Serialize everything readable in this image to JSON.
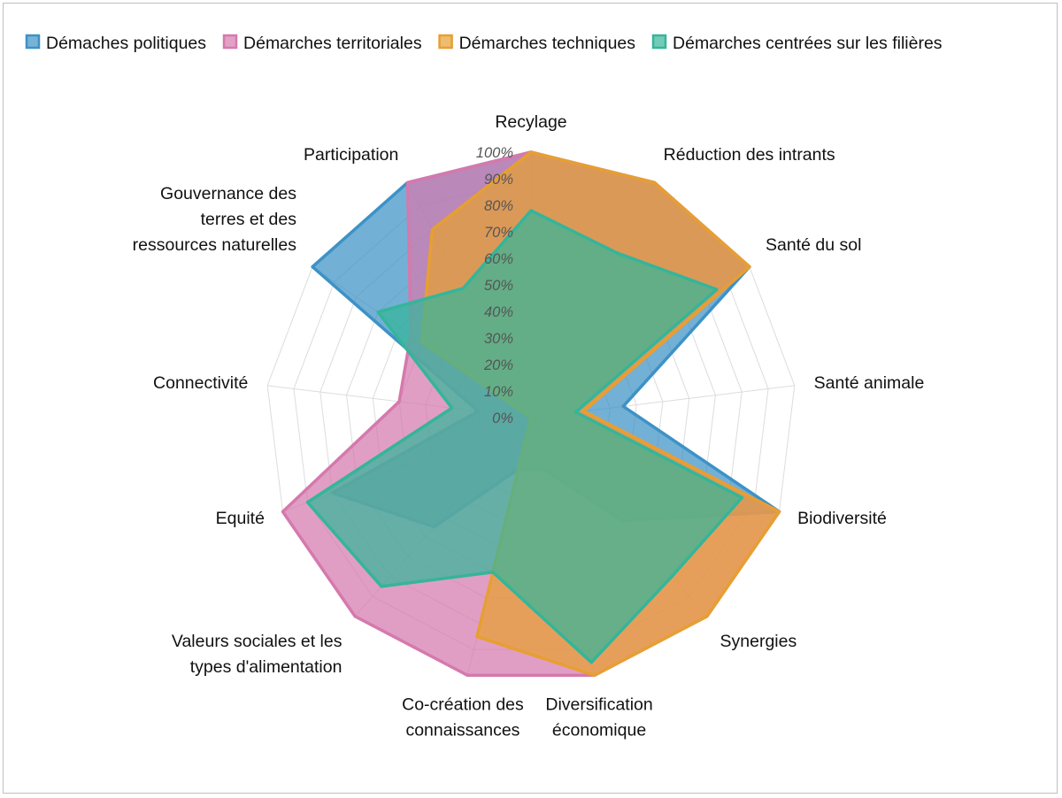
{
  "chart_data": {
    "type": "radar",
    "title": "",
    "grid": true,
    "legend_position": "top",
    "r_range": [
      0,
      100
    ],
    "ticks": [
      "0%",
      "10%",
      "20%",
      "30%",
      "40%",
      "50%",
      "60%",
      "70%",
      "80%",
      "90%",
      "100%"
    ],
    "categories": [
      [
        "Recylage"
      ],
      [
        "Réduction des intrants"
      ],
      [
        "Santé du sol"
      ],
      [
        "Santé animale"
      ],
      [
        "Biodiversité"
      ],
      [
        "Synergies"
      ],
      [
        "Diversification",
        "économique"
      ],
      [
        "Co-création des",
        "connaissances"
      ],
      [
        "Valeurs sociales et les",
        "types d'alimentation"
      ],
      [
        "Equité"
      ],
      [
        "Connectivité"
      ],
      [
        "Gouvernance des",
        "terres et des",
        "ressources naturelles"
      ],
      [
        "Participation"
      ]
    ],
    "series": [
      {
        "name": "Démaches politiques",
        "color": "#3d92c6",
        "values": [
          100,
          100,
          100,
          35,
          100,
          52,
          20,
          20,
          55,
          80,
          20,
          100,
          100
        ]
      },
      {
        "name": "Démarches territoriales",
        "color": "#d579ad",
        "values": [
          100,
          100,
          100,
          20,
          100,
          100,
          100,
          100,
          100,
          100,
          50,
          55,
          100
        ]
      },
      {
        "name": "Démarches techniques",
        "color": "#e79f32",
        "values": [
          100,
          100,
          100,
          20,
          100,
          100,
          100,
          85,
          0,
          0,
          0,
          50,
          80
        ]
      },
      {
        "name": "Démarches centrées sur les filières",
        "color": "#35b59a",
        "values": [
          78,
          70,
          85,
          17,
          85,
          80,
          95,
          60,
          85,
          90,
          30,
          70,
          55
        ]
      }
    ]
  }
}
